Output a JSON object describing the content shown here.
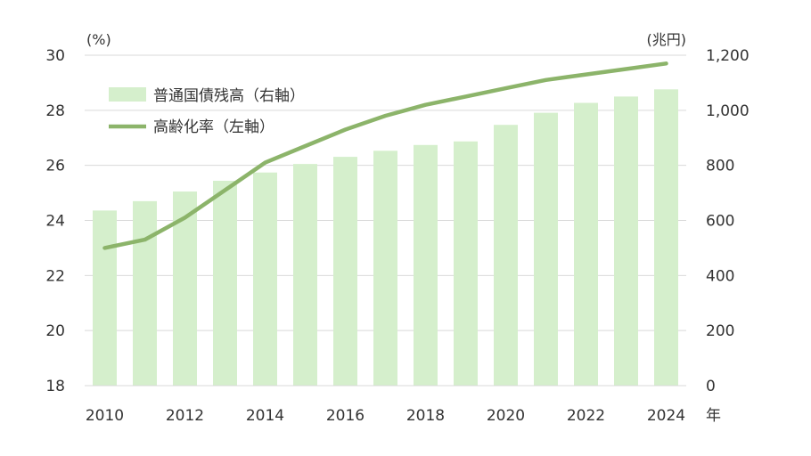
{
  "chart_data": {
    "type": "bar+line",
    "title": "",
    "x": [
      2010,
      2011,
      2012,
      2013,
      2014,
      2015,
      2016,
      2017,
      2018,
      2019,
      2020,
      2021,
      2022,
      2023,
      2024
    ],
    "x_tick_labels": [
      "2010",
      "2012",
      "2014",
      "2016",
      "2018",
      "2020",
      "2022",
      "2024"
    ],
    "xlabel": "年",
    "y_left": {
      "unit": "(%)",
      "lim": [
        18,
        30
      ],
      "ticks": [
        "18",
        "20",
        "22",
        "24",
        "26",
        "28",
        "30"
      ]
    },
    "y_right": {
      "unit": "(兆円)",
      "lim": [
        0,
        1200
      ],
      "ticks": [
        "0",
        "200",
        "400",
        "600",
        "800",
        "1,000",
        "1,200"
      ]
    },
    "grid": "horizontal",
    "legend_position": "top-left",
    "series": [
      {
        "name": "普通国債残高（右軸）",
        "type": "bar",
        "axis": "right",
        "color": "#d5efcc",
        "values": [
          636,
          670,
          705,
          744,
          774,
          805,
          831,
          853,
          874,
          887,
          947,
          991,
          1027,
          1050,
          1076
        ]
      },
      {
        "name": "高齢化率（左軸）",
        "type": "line",
        "axis": "left",
        "color": "#8cb46a",
        "values": [
          23.0,
          23.3,
          24.1,
          25.1,
          26.1,
          26.7,
          27.3,
          27.8,
          28.2,
          28.5,
          28.8,
          29.1,
          29.3,
          29.5,
          29.7
        ]
      }
    ]
  }
}
